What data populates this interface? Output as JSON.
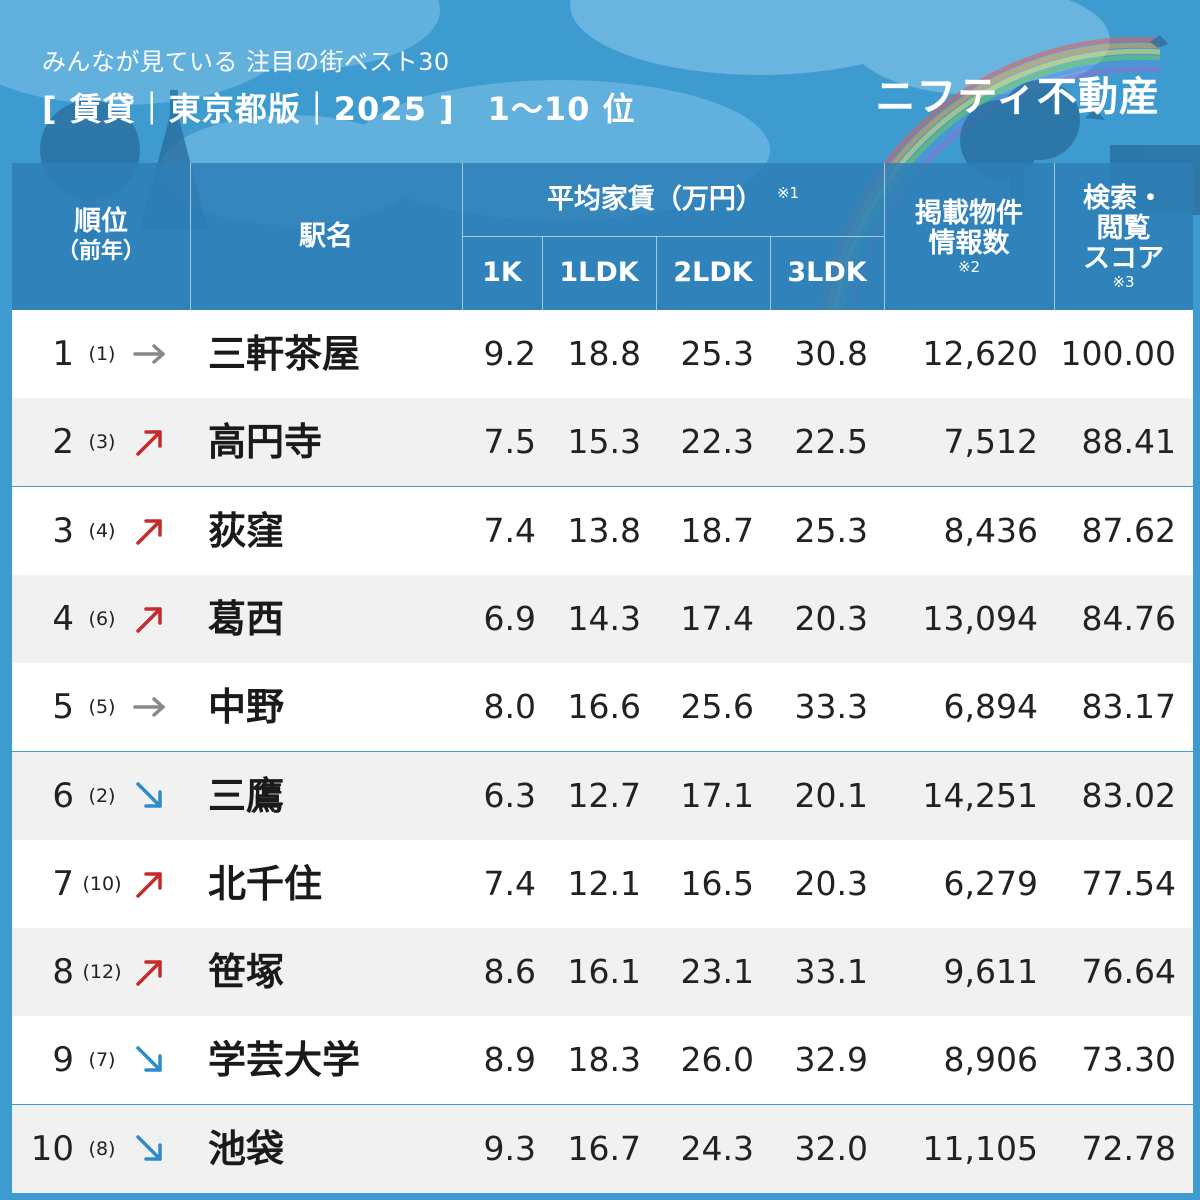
{
  "header": {
    "subtitle": "みんなが見ている 注目の街ベスト30",
    "title": "[ 賃貸｜東京都版｜2025 ]　1〜10 位",
    "brand": "ニフティ不動産"
  },
  "columns": {
    "rank": "順位",
    "rank_prev": "（前年）",
    "station": "駅名",
    "rent_group": "平均家賃（万円）",
    "rent_note": "※1",
    "rent_1k": "1K",
    "rent_1ldk": "1LDK",
    "rent_2ldk": "2LDK",
    "rent_3ldk": "3LDK",
    "listings_line1": "掲載物件",
    "listings_line2": "情報数",
    "listings_note": "※2",
    "score_line1": "検索・",
    "score_line2": "閲覧",
    "score_line3": "スコア",
    "score_note": "※3"
  },
  "colors": {
    "background": "#3e9bd0",
    "header_band": "#2e7fb6",
    "arrow_up": "#c62b2b",
    "arrow_flat": "#888888",
    "arrow_down": "#2d8cc8"
  },
  "rows": [
    {
      "rank": "1",
      "prev": "(1)",
      "trend": "flat",
      "station": "三軒茶屋",
      "r1k": "9.2",
      "r1ldk": "18.8",
      "r2ldk": "25.3",
      "r3ldk": "30.8",
      "listings": "12,620",
      "score": "100.00"
    },
    {
      "rank": "2",
      "prev": "(3)",
      "trend": "up",
      "station": "高円寺",
      "r1k": "7.5",
      "r1ldk": "15.3",
      "r2ldk": "22.3",
      "r3ldk": "22.5",
      "listings": "7,512",
      "score": "88.41"
    },
    {
      "rank": "3",
      "prev": "(4)",
      "trend": "up",
      "station": "荻窪",
      "r1k": "7.4",
      "r1ldk": "13.8",
      "r2ldk": "18.7",
      "r3ldk": "25.3",
      "listings": "8,436",
      "score": "87.62"
    },
    {
      "rank": "4",
      "prev": "(6)",
      "trend": "up",
      "station": "葛西",
      "r1k": "6.9",
      "r1ldk": "14.3",
      "r2ldk": "17.4",
      "r3ldk": "20.3",
      "listings": "13,094",
      "score": "84.76"
    },
    {
      "rank": "5",
      "prev": "(5)",
      "trend": "flat",
      "station": "中野",
      "r1k": "8.0",
      "r1ldk": "16.6",
      "r2ldk": "25.6",
      "r3ldk": "33.3",
      "listings": "6,894",
      "score": "83.17"
    },
    {
      "rank": "6",
      "prev": "(2)",
      "trend": "down",
      "station": "三鷹",
      "r1k": "6.3",
      "r1ldk": "12.7",
      "r2ldk": "17.1",
      "r3ldk": "20.1",
      "listings": "14,251",
      "score": "83.02"
    },
    {
      "rank": "7",
      "prev": "(10)",
      "trend": "up",
      "station": "北千住",
      "r1k": "7.4",
      "r1ldk": "12.1",
      "r2ldk": "16.5",
      "r3ldk": "20.3",
      "listings": "6,279",
      "score": "77.54"
    },
    {
      "rank": "8",
      "prev": "(12)",
      "trend": "up",
      "station": "笹塚",
      "r1k": "8.6",
      "r1ldk": "16.1",
      "r2ldk": "23.1",
      "r3ldk": "33.1",
      "listings": "9,611",
      "score": "76.64"
    },
    {
      "rank": "9",
      "prev": "(7)",
      "trend": "down",
      "station": "学芸大学",
      "r1k": "8.9",
      "r1ldk": "18.3",
      "r2ldk": "26.0",
      "r3ldk": "32.9",
      "listings": "8,906",
      "score": "73.30"
    },
    {
      "rank": "10",
      "prev": "(8)",
      "trend": "down",
      "station": "池袋",
      "r1k": "9.3",
      "r1ldk": "16.7",
      "r2ldk": "24.3",
      "r3ldk": "32.0",
      "listings": "11,105",
      "score": "72.78"
    }
  ]
}
